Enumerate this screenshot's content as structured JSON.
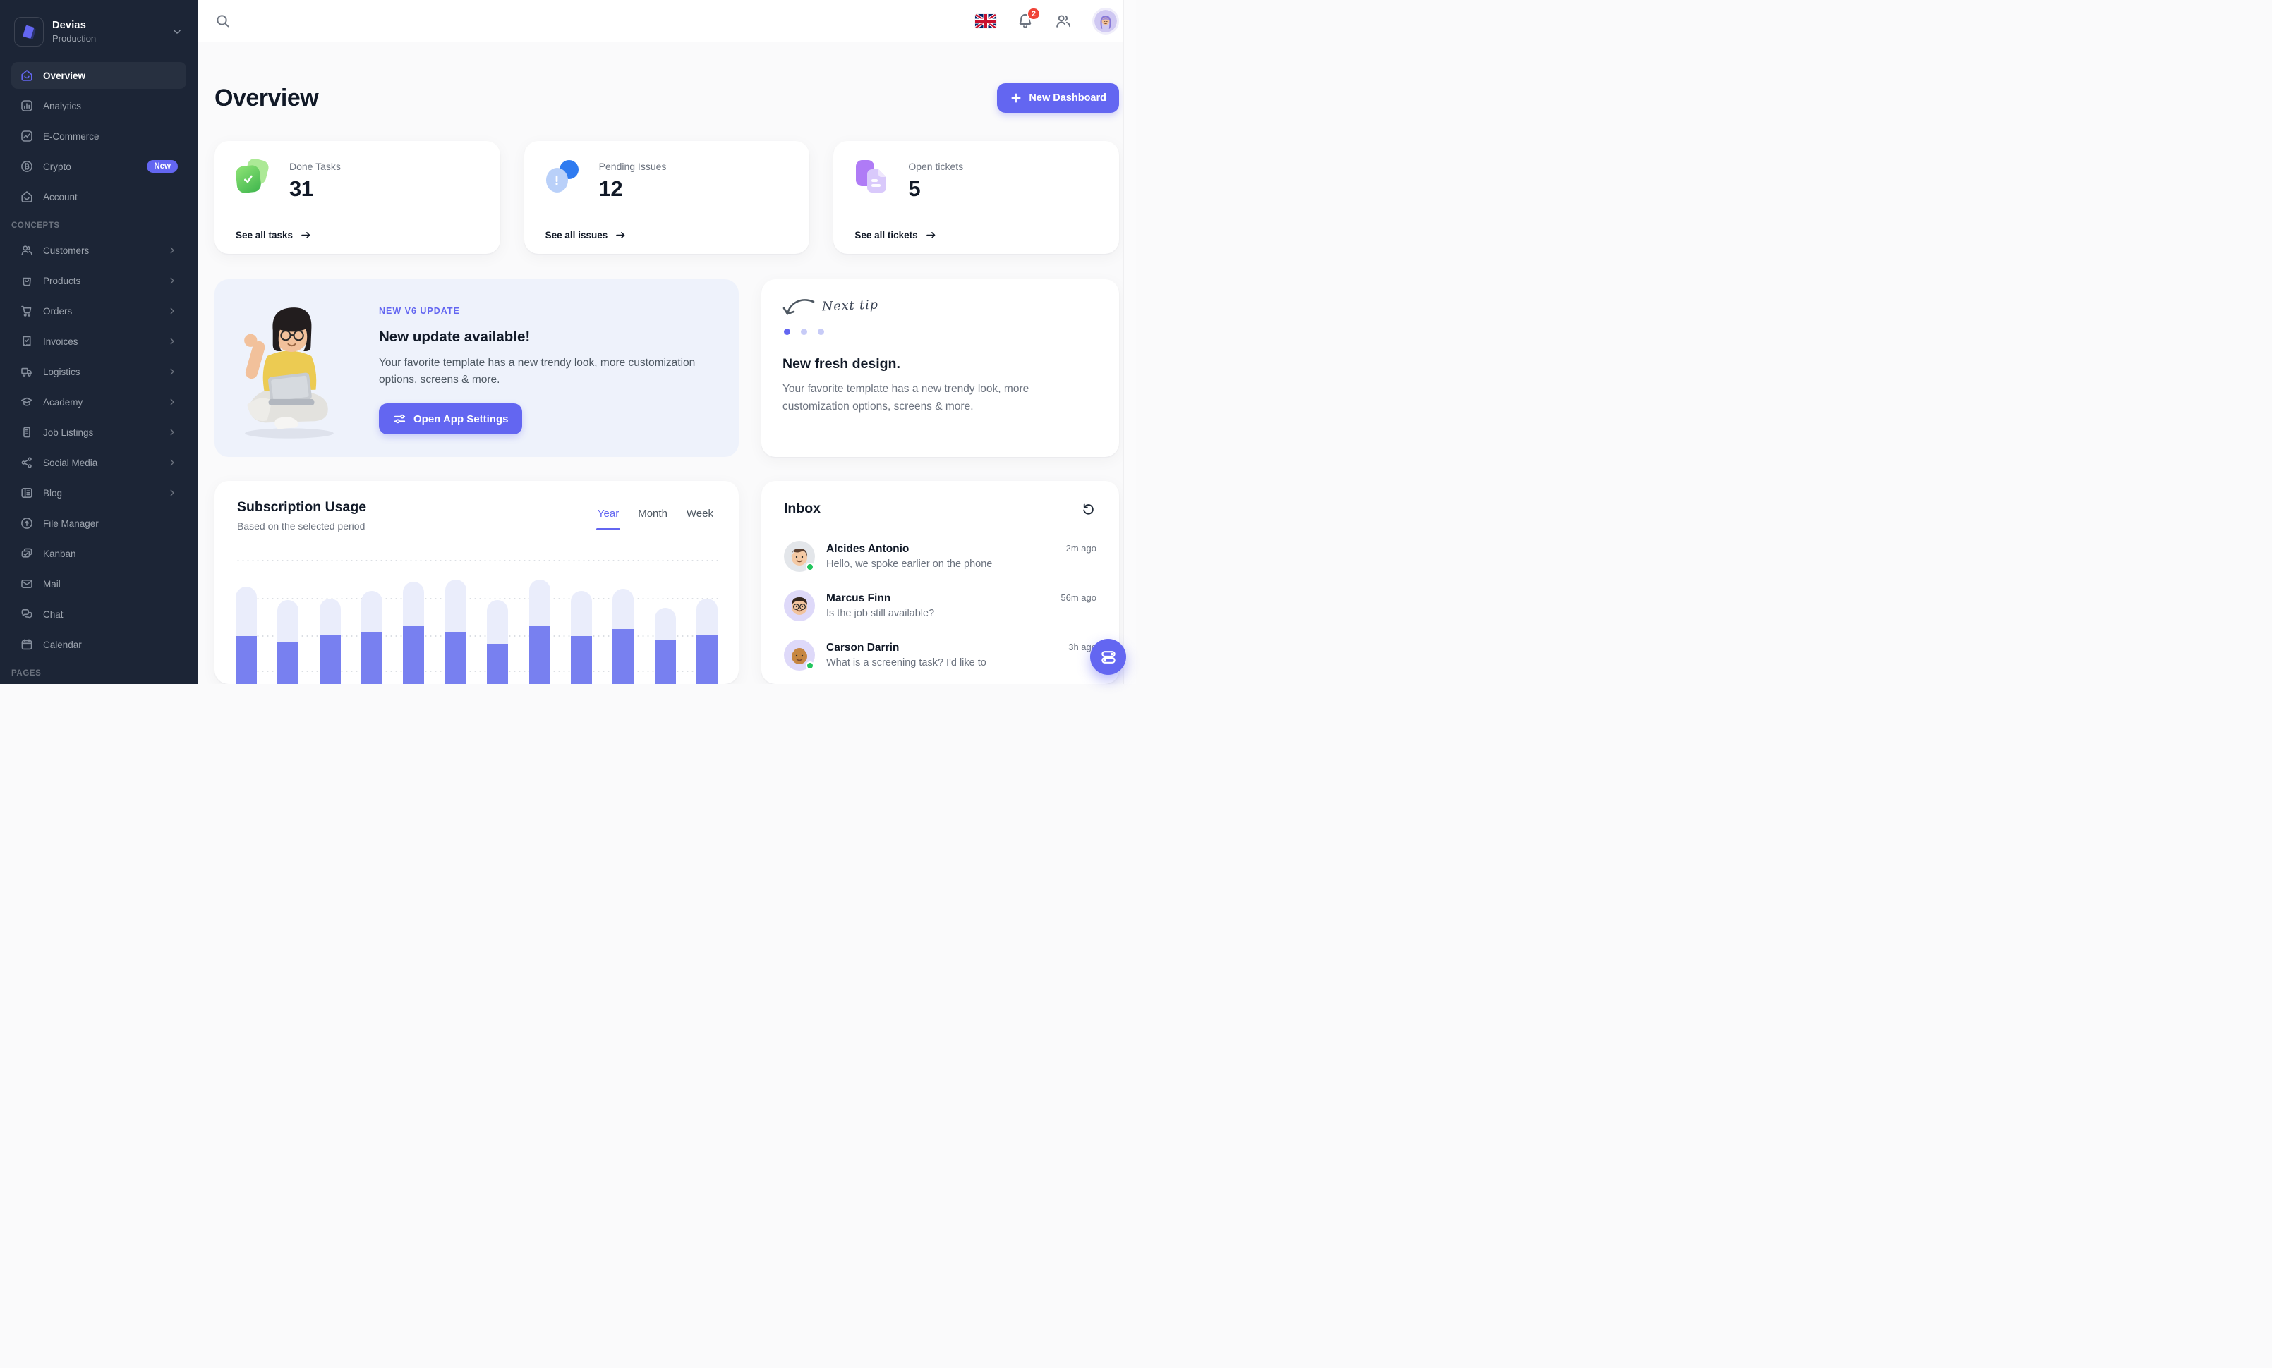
{
  "colors": {
    "accent": "#6366F1",
    "sidebar_bg": "#1C2536",
    "content_bg": "#FAFAFB",
    "notification_badge_red": "#F04438",
    "online_green": "#22C55E",
    "bar_used": "#7880F0",
    "bar_capacity": "#EAEDFB",
    "update_card_bg": "#EEF2FB"
  },
  "sidebar": {
    "workspace": {
      "name": "Devias",
      "environment": "Production"
    },
    "nav": [
      {
        "label": "Overview",
        "icon": "home",
        "active": true
      },
      {
        "label": "Analytics",
        "icon": "analytics"
      },
      {
        "label": "E-Commerce",
        "icon": "ecommerce"
      },
      {
        "label": "Crypto",
        "icon": "crypto",
        "badge": "New"
      },
      {
        "label": "Account",
        "icon": "home"
      },
      {
        "section": "CONCEPTS"
      },
      {
        "label": "Customers",
        "icon": "customers",
        "chevron": true
      },
      {
        "label": "Products",
        "icon": "products",
        "chevron": true
      },
      {
        "label": "Orders",
        "icon": "orders",
        "chevron": true
      },
      {
        "label": "Invoices",
        "icon": "invoices",
        "chevron": true
      },
      {
        "label": "Logistics",
        "icon": "logistics",
        "chevron": true
      },
      {
        "label": "Academy",
        "icon": "academy",
        "chevron": true
      },
      {
        "label": "Job Listings",
        "icon": "jobs",
        "chevron": true
      },
      {
        "label": "Social Media",
        "icon": "social",
        "chevron": true
      },
      {
        "label": "Blog",
        "icon": "blog",
        "chevron": true
      },
      {
        "label": "File Manager",
        "icon": "files"
      },
      {
        "label": "Kanban",
        "icon": "kanban"
      },
      {
        "label": "Mail",
        "icon": "mail"
      },
      {
        "label": "Chat",
        "icon": "chat"
      },
      {
        "label": "Calendar",
        "icon": "calendar"
      },
      {
        "section": "PAGES"
      }
    ]
  },
  "topbar": {
    "notifications_count": "2"
  },
  "page": {
    "title": "Overview",
    "primary_action_label": "New Dashboard"
  },
  "stats": [
    {
      "icon": "stat-done",
      "label": "Done Tasks",
      "value": "31",
      "link": "See all tasks"
    },
    {
      "icon": "stat-pending",
      "label": "Pending Issues",
      "value": "12",
      "link": "See all issues"
    },
    {
      "icon": "stat-ticket",
      "label": "Open tickets",
      "value": "5",
      "link": "See all tickets"
    }
  ],
  "update_card": {
    "eyebrow": "NEW V6 UPDATE",
    "title": "New update available!",
    "body": "Your favorite template has a new trendy look, more customization options, screens & more.",
    "cta_label": "Open App Settings"
  },
  "tip_card": {
    "handwritten_label": "Next tip",
    "dots": 3,
    "active_dot": 0,
    "title": "New fresh design.",
    "body": "Your favorite template has a new trendy look, more customization options, screens & more."
  },
  "usage_card": {
    "title": "Subscription Usage",
    "subtitle": "Based on the selected period",
    "tabs": [
      "Year",
      "Month",
      "Week"
    ],
    "active_tab": "Year"
  },
  "chart_data": {
    "type": "bar",
    "title": "Subscription Usage",
    "num_bars": 12,
    "x_axis_labels_visible": false,
    "cropped_at_bottom": true,
    "grid": "dotted-horizontal",
    "series": [
      {
        "name": "capacity",
        "color": "#EAEDFB",
        "values": [
          138,
          119,
          121,
          132,
          145,
          148,
          119,
          148,
          132,
          135,
          108,
          121
        ]
      },
      {
        "name": "used",
        "color": "#7880F0",
        "values": [
          68,
          60,
          70,
          74,
          82,
          74,
          57,
          82,
          68,
          78,
          62,
          70
        ]
      }
    ]
  },
  "inbox": {
    "title": "Inbox",
    "messages": [
      {
        "name": "Alcides Antonio",
        "preview": "Hello, we spoke earlier on the phone",
        "time": "2m ago",
        "online": true,
        "avatar": "alcides"
      },
      {
        "name": "Marcus Finn",
        "preview": "Is the job still available?",
        "time": "56m ago",
        "online": false,
        "avatar": "marcus"
      },
      {
        "name": "Carson Darrin",
        "preview": "What is a screening task? I'd like to",
        "time": "3h ago",
        "online": true,
        "avatar": "carson"
      }
    ]
  }
}
